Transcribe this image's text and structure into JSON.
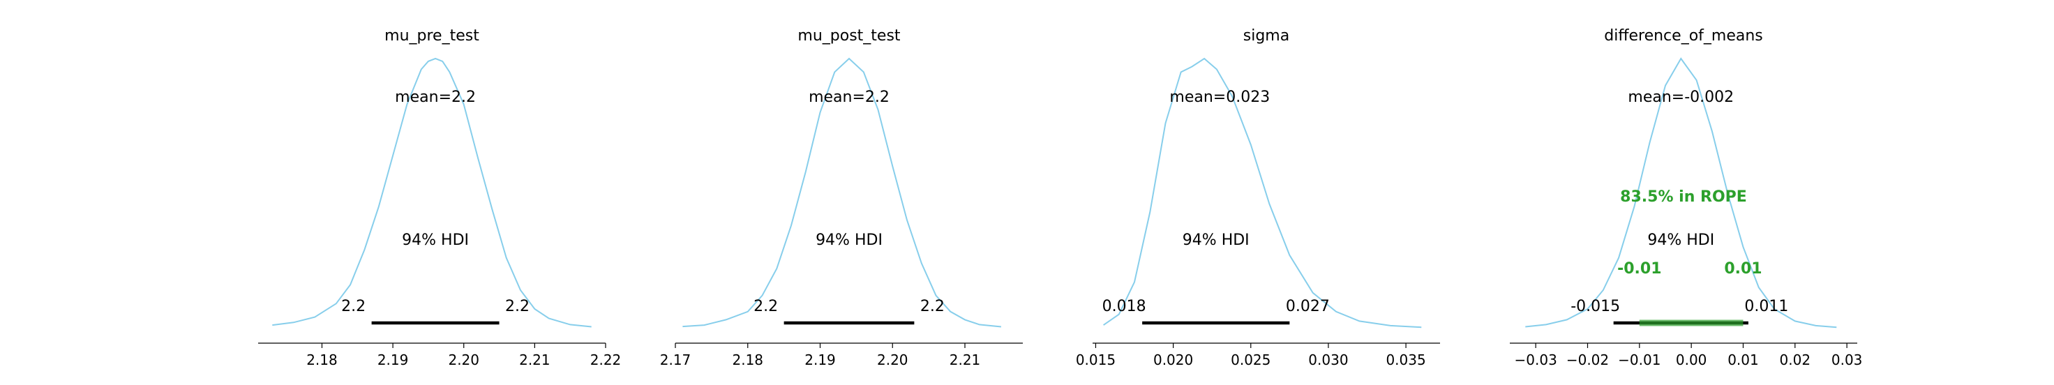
{
  "chart_data": [
    {
      "type": "density",
      "title": "mu_pre_test",
      "xlim": [
        2.171,
        2.22
      ],
      "xticks": [
        "2.18",
        "2.19",
        "2.20",
        "2.21",
        "2.22"
      ],
      "xtick_values": [
        2.18,
        2.19,
        2.2,
        2.21,
        2.22
      ],
      "mean": 2.196,
      "mean_label": "mean=2.2",
      "hdi_label": "94% HDI",
      "hdi": [
        2.187,
        2.205
      ],
      "hdi_labels": [
        "2.2",
        "2.2"
      ],
      "curve": {
        "x": [
          2.173,
          2.176,
          2.179,
          2.182,
          2.184,
          2.186,
          2.188,
          2.19,
          2.192,
          2.194,
          2.195,
          2.196,
          2.197,
          2.198,
          2.2,
          2.202,
          2.204,
          2.206,
          2.208,
          2.21,
          2.212,
          2.215,
          2.218
        ],
        "y": [
          0.01,
          0.02,
          0.04,
          0.09,
          0.16,
          0.29,
          0.45,
          0.64,
          0.83,
          0.96,
          0.99,
          1.0,
          0.99,
          0.95,
          0.83,
          0.63,
          0.44,
          0.26,
          0.14,
          0.07,
          0.035,
          0.012,
          0.004
        ]
      },
      "line_color": "#87ceeb"
    },
    {
      "type": "density",
      "title": "mu_post_test",
      "xlim": [
        2.17,
        2.218
      ],
      "xticks": [
        "2.17",
        "2.18",
        "2.19",
        "2.20",
        "2.21"
      ],
      "xtick_values": [
        2.17,
        2.18,
        2.19,
        2.2,
        2.21
      ],
      "mean": 2.194,
      "mean_label": "mean=2.2",
      "hdi_label": "94% HDI",
      "hdi": [
        2.185,
        2.203
      ],
      "hdi_labels": [
        "2.2",
        "2.2"
      ],
      "curve": {
        "x": [
          2.171,
          2.174,
          2.177,
          2.18,
          2.182,
          2.184,
          2.186,
          2.188,
          2.19,
          2.192,
          2.194,
          2.196,
          2.198,
          2.2,
          2.202,
          2.204,
          2.206,
          2.208,
          2.21,
          2.212,
          2.215
        ],
        "y": [
          0.005,
          0.01,
          0.03,
          0.06,
          0.12,
          0.22,
          0.38,
          0.58,
          0.8,
          0.95,
          1.0,
          0.95,
          0.81,
          0.6,
          0.4,
          0.24,
          0.12,
          0.06,
          0.03,
          0.012,
          0.004
        ]
      },
      "line_color": "#87ceeb"
    },
    {
      "type": "density",
      "title": "sigma",
      "xlim": [
        0.0148,
        0.0372
      ],
      "xticks": [
        "0.015",
        "0.020",
        "0.025",
        "0.030",
        "0.035"
      ],
      "xtick_values": [
        0.015,
        0.02,
        0.025,
        0.03,
        0.035
      ],
      "mean": 0.023,
      "mean_label": "mean=0.023",
      "hdi_label": "94% HDI",
      "hdi": [
        0.018,
        0.0275
      ],
      "hdi_labels": [
        "0.018",
        "0.027"
      ],
      "curve": {
        "x": [
          0.0155,
          0.0165,
          0.0175,
          0.0185,
          0.0195,
          0.0205,
          0.0212,
          0.022,
          0.0228,
          0.0238,
          0.025,
          0.0262,
          0.0275,
          0.029,
          0.0305,
          0.032,
          0.034,
          0.036
        ],
        "y": [
          0.01,
          0.05,
          0.17,
          0.43,
          0.76,
          0.95,
          0.97,
          1.0,
          0.96,
          0.86,
          0.68,
          0.46,
          0.27,
          0.13,
          0.06,
          0.025,
          0.008,
          0.002
        ]
      },
      "line_color": "#87ceeb"
    },
    {
      "type": "density",
      "title": "difference_of_means",
      "xlim": [
        -0.035,
        0.032
      ],
      "xticks": [
        "−0.03",
        "−0.02",
        "−0.01",
        "0.00",
        "0.01",
        "0.02",
        "0.03"
      ],
      "xtick_values": [
        -0.03,
        -0.02,
        -0.01,
        0.0,
        0.01,
        0.02,
        0.03
      ],
      "mean": -0.002,
      "mean_label": "mean=-0.002",
      "hdi_label": "94% HDI",
      "hdi": [
        -0.015,
        0.011
      ],
      "hdi_labels": [
        "-0.015",
        "0.011"
      ],
      "rope": [
        -0.01,
        0.01
      ],
      "rope_labels": [
        "-0.01",
        "0.01"
      ],
      "rope_label": "83.5% in ROPE",
      "curve": {
        "x": [
          -0.032,
          -0.028,
          -0.024,
          -0.02,
          -0.017,
          -0.014,
          -0.011,
          -0.008,
          -0.005,
          -0.002,
          0.001,
          0.004,
          0.007,
          0.01,
          0.013,
          0.016,
          0.02,
          0.024,
          0.028
        ],
        "y": [
          0.004,
          0.012,
          0.03,
          0.07,
          0.14,
          0.26,
          0.45,
          0.69,
          0.9,
          1.0,
          0.92,
          0.73,
          0.5,
          0.3,
          0.15,
          0.07,
          0.025,
          0.008,
          0.002
        ]
      },
      "line_color": "#87ceeb",
      "rope_color": "#2ca02c"
    }
  ]
}
